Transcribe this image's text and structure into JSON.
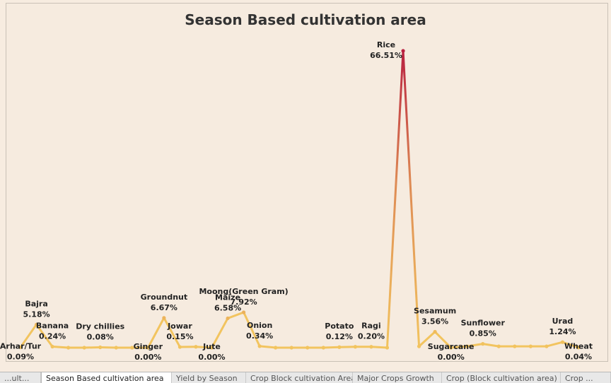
{
  "chart_data": {
    "type": "line",
    "title": "Season Based cultivation area",
    "xlabel": "",
    "ylabel": "",
    "ylim": [
      0,
      70
    ],
    "color_low": "#f2c45f",
    "color_high": "#b8203f",
    "categories": [
      "Arhar/Tur",
      "Bajra",
      "Banana",
      "",
      "",
      "Dry chillies",
      "",
      "",
      "Ginger",
      "Groundnut",
      "Jowar",
      "",
      "Jute",
      "Maize",
      "Moong(Green Gram)",
      "Onion",
      "",
      "",
      "",
      "",
      "Potato",
      "",
      "Ragi",
      "",
      "Rice",
      "",
      "Sesamum",
      "Sugarcane",
      "",
      "Sunflower",
      "",
      "",
      "",
      "",
      "Urad",
      "Wheat"
    ],
    "values": [
      0.09,
      5.18,
      0.24,
      0.0,
      0.0,
      0.08,
      0.0,
      0.0,
      0.0,
      6.67,
      0.15,
      0.2,
      0.0,
      6.58,
      7.92,
      0.34,
      0.0,
      0.0,
      0.0,
      0.0,
      0.12,
      0.2,
      0.2,
      0.0,
      66.51,
      0.3,
      3.56,
      0.0,
      0.3,
      0.85,
      0.3,
      0.3,
      0.3,
      0.3,
      1.24,
      0.04
    ],
    "labels": [
      {
        "index": 0,
        "name": "Arhar/Tur",
        "pct": "0.09%",
        "pos": "below"
      },
      {
        "index": 1,
        "name": "Bajra",
        "pct": "5.18%",
        "pos": "above"
      },
      {
        "index": 2,
        "name": "Banana",
        "pct": "0.24%",
        "pos": "above"
      },
      {
        "index": 5,
        "name": "Dry chillies",
        "pct": "0.08%",
        "pos": "above"
      },
      {
        "index": 8,
        "name": "Ginger",
        "pct": "0.00%",
        "pos": "below"
      },
      {
        "index": 9,
        "name": "Groundnut",
        "pct": "6.67%",
        "pos": "above"
      },
      {
        "index": 10,
        "name": "Jowar",
        "pct": "0.15%",
        "pos": "above"
      },
      {
        "index": 12,
        "name": "Jute",
        "pct": "0.00%",
        "pos": "below"
      },
      {
        "index": 13,
        "name": "Maize",
        "pct": "6.58%",
        "pos": "above"
      },
      {
        "index": 14,
        "name": "Moong(Green Gram)",
        "pct": "7.92%",
        "pos": "above"
      },
      {
        "index": 15,
        "name": "Onion",
        "pct": "0.34%",
        "pos": "above"
      },
      {
        "index": 20,
        "name": "Potato",
        "pct": "0.12%",
        "pos": "above"
      },
      {
        "index": 22,
        "name": "Ragi",
        "pct": "0.20%",
        "pos": "above"
      },
      {
        "index": 24,
        "name": "Rice",
        "pct": "66.51%",
        "pos": "above"
      },
      {
        "index": 26,
        "name": "Sesamum",
        "pct": "3.56%",
        "pos": "above"
      },
      {
        "index": 27,
        "name": "Sugarcane",
        "pct": "0.00%",
        "pos": "below"
      },
      {
        "index": 29,
        "name": "Sunflower",
        "pct": "0.85%",
        "pos": "above"
      },
      {
        "index": 34,
        "name": "Urad",
        "pct": "1.24%",
        "pos": "above"
      },
      {
        "index": 35,
        "name": "Wheat",
        "pct": "0.04%",
        "pos": "below"
      }
    ]
  },
  "tabs": [
    {
      "label": "...ult...",
      "active": false
    },
    {
      "label": "Season Based cultivation area",
      "active": true
    },
    {
      "label": "Yield by Season",
      "active": false
    },
    {
      "label": "Crop Block cultivation Area",
      "active": false
    },
    {
      "label": "Major Crops Growth",
      "active": false
    },
    {
      "label": "Crop (Block cultivation area)",
      "active": false
    },
    {
      "label": "Crop ...",
      "active": false
    }
  ]
}
